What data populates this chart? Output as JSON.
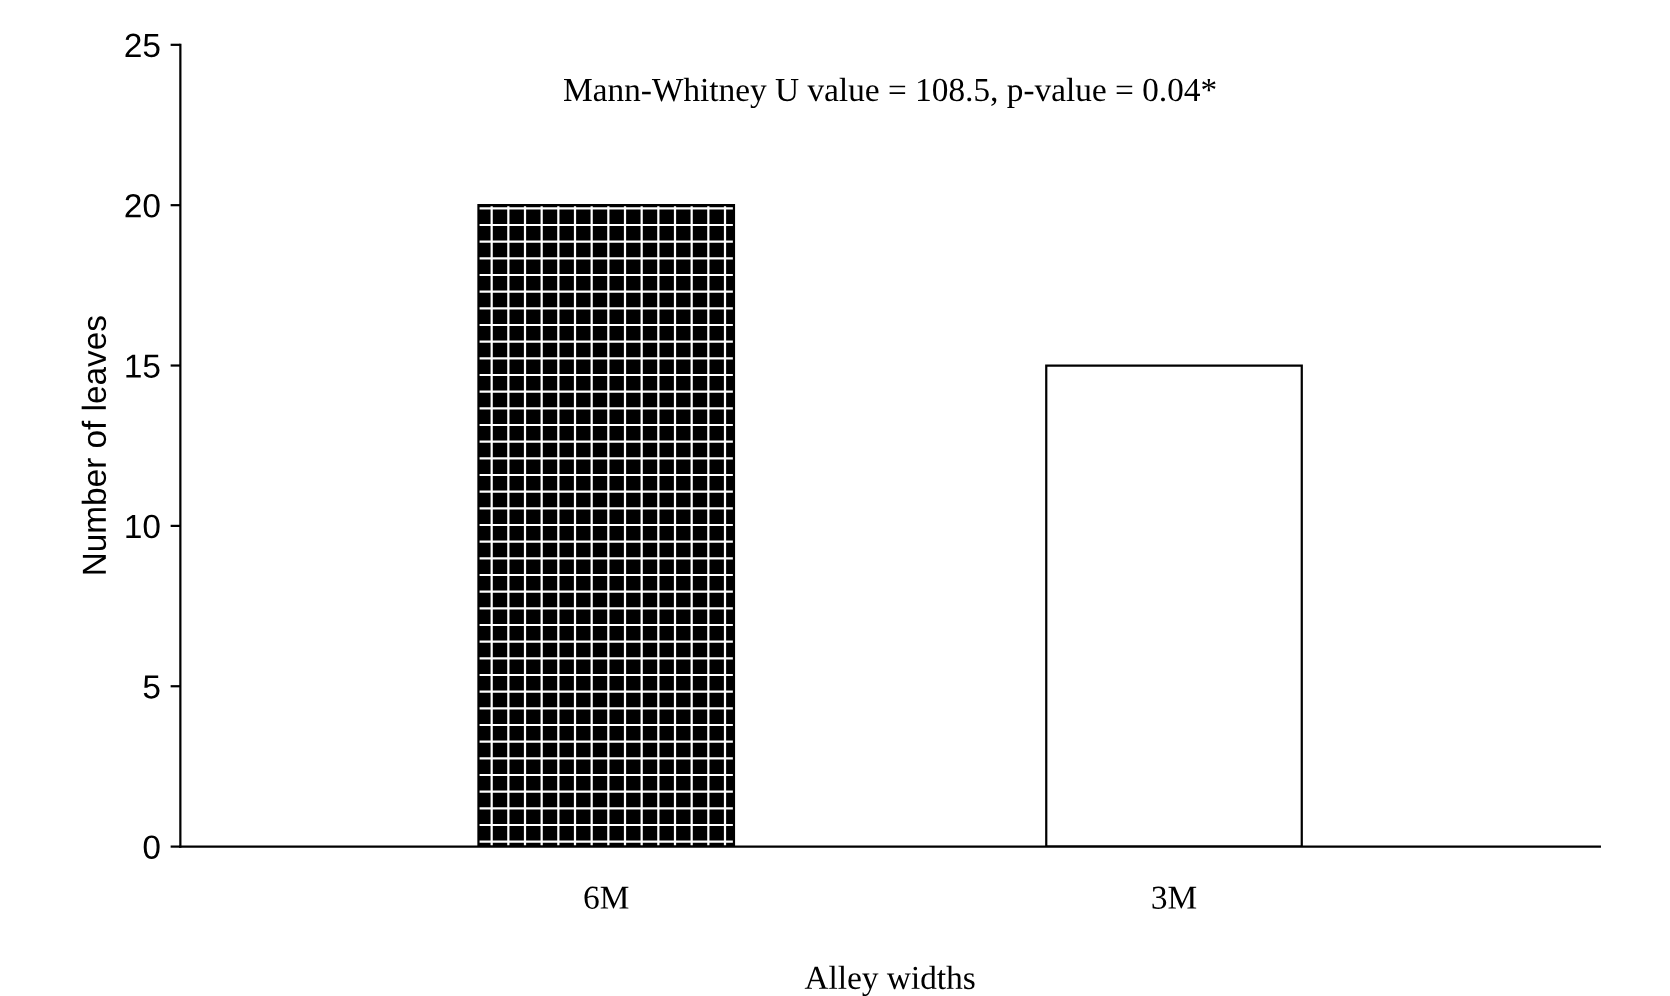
{
  "chart_data": {
    "type": "bar",
    "xlabel": "Alley widths",
    "ylabel": "Number of leaves",
    "categories": [
      "6M",
      "3M"
    ],
    "values": [
      20,
      15
    ],
    "colors": [
      "#000000",
      "#ffffff"
    ],
    "ylim": [
      0,
      25
    ],
    "yticks": [
      0,
      5,
      10,
      15,
      20,
      25
    ],
    "grid": false,
    "legend": false,
    "annotations": [
      "Mann-Whitney U value = 108.5, p-value = 0.04*"
    ]
  }
}
